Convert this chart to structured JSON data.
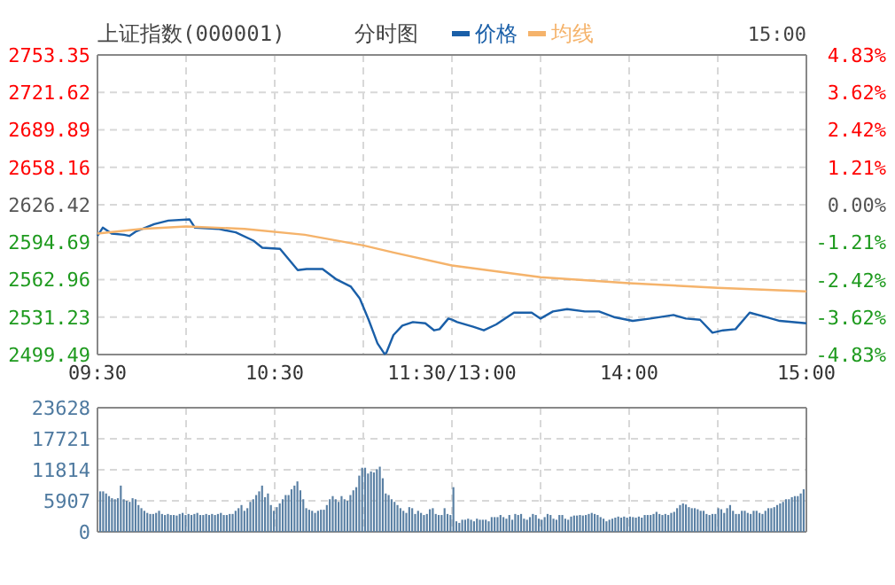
{
  "chart_data": [
    {
      "type": "line",
      "title": "上证指数(000001)",
      "subtitle": "分时图",
      "legend": "top",
      "grid": true,
      "xlim": [
        9.5,
        11.5
      ],
      "xticks": [
        {
          "value": 9.5,
          "label": "09:30"
        },
        {
          "value": 10,
          "label": null
        },
        {
          "value": 10.5,
          "label": "10:30"
        },
        {
          "value": 11,
          "label": null
        },
        {
          "value": 11.5,
          "label": "11:30/13:00"
        }
      ],
      "ylim": [
        2499.49,
        2753.35
      ],
      "yticks": [
        2499.49,
        2531.23,
        2562.96,
        2594.69,
        2626.42,
        2658.16,
        2689.89,
        2721.62,
        2753.35
      ],
      "series": [
        {
          "name": "价格",
          "color": "#1a5fa8",
          "x": [
            9.5,
            9.53,
            9.58,
            9.65,
            9.68,
            9.72,
            9.82,
            9.9,
            10.02,
            10.05,
            10.18,
            10.28,
            10.38,
            10.43,
            10.53,
            10.58,
            10.63,
            10.68,
            10.77,
            10.85,
            10.93,
            10.98,
            11.03,
            11.08,
            11.12,
            11.13,
            11.17,
            11.22,
            11.28,
            11.35,
            11.4,
            11.43,
            11.48,
            11.5
          ],
          "values": [
            2600,
            2607,
            2602,
            2601,
            2600,
            2604,
            2610,
            2613,
            2614,
            2607,
            2606,
            2603,
            2596,
            2590,
            2589,
            2580,
            2571,
            2572,
            2572,
            2563,
            2557,
            2547,
            2529,
            2509,
            2500,
            2501,
            2516,
            2524,
            2527,
            2526,
            2520,
            2521,
            2530,
            2529
          ]
        },
        {
          "name": "均线",
          "color": "#f5b36b",
          "x": [
            9.5,
            9.75,
            10,
            10.33,
            10.67,
            11,
            11.17,
            11.5
          ],
          "values": [
            2602,
            2606,
            2608,
            2606,
            2601,
            2592,
            2586,
            2575
          ]
        }
      ]
    },
    {
      "type": "line",
      "annotations": [
        "15:00"
      ],
      "grid": true,
      "tick_labels": "x",
      "xlim": [
        13,
        15
      ],
      "xticks": [
        {
          "value": 13.5,
          "label": null
        },
        {
          "value": 14,
          "label": "14:00"
        },
        {
          "value": 14.5,
          "label": null
        },
        {
          "value": 15,
          "label": "15:00"
        }
      ],
      "ylim": [
        2499.49,
        2753.35
      ],
      "y2lim": [
        -4.83,
        4.83
      ],
      "y2ticks": [
        {
          "value": -4.83,
          "label": "-4.83%"
        },
        {
          "value": -3.62,
          "label": "-3.62%"
        },
        {
          "value": -2.42,
          "label": "-2.42%"
        },
        {
          "value": -1.21,
          "label": "-1.21%"
        },
        {
          "value": 0,
          "label": "0.00%"
        },
        {
          "value": 1.21,
          "label": "1.21%"
        },
        {
          "value": 2.42,
          "label": "2.42%"
        },
        {
          "value": 3.62,
          "label": "3.62%"
        },
        {
          "value": 4.83,
          "label": "4.83%"
        }
      ],
      "series": [
        {
          "color": "#1a5fa8",
          "x": [
            13,
            13.03,
            13.12,
            13.18,
            13.25,
            13.35,
            13.45,
            13.5,
            13.57,
            13.65,
            13.75,
            13.83,
            13.92,
            14.02,
            14.12,
            14.25,
            14.32,
            14.4,
            14.47,
            14.53,
            14.6,
            14.68,
            14.78,
            14.85,
            15
          ],
          "values": [
            2529,
            2527,
            2523,
            2520,
            2525,
            2535,
            2535,
            2530,
            2536,
            2538,
            2536,
            2536,
            2531,
            2528,
            2530,
            2533,
            2530,
            2529,
            2518,
            2520,
            2521,
            2535,
            2531,
            2528,
            2526
          ]
        },
        {
          "color": "#f5b36b",
          "x": [
            13,
            13.5,
            14,
            14.5,
            15
          ],
          "values": [
            2575,
            2565,
            2560,
            2556,
            2553
          ]
        }
      ]
    },
    {
      "type": "bar",
      "grid": true,
      "tick_labels": "y",
      "color": "#5a80a4",
      "ylim": [
        0,
        23628
      ],
      "yticks": [
        0,
        5907,
        11814,
        17721,
        23628
      ],
      "categories": [
        null,
        null,
        null,
        null,
        null,
        null,
        null,
        null,
        null,
        null,
        null,
        null,
        null,
        null,
        null,
        null,
        null,
        null,
        null,
        null,
        null,
        null,
        null,
        null,
        null,
        null,
        null,
        null,
        null,
        null,
        null,
        null,
        null,
        null,
        null,
        null,
        null,
        null,
        null,
        null,
        null,
        null,
        null,
        null,
        null,
        null,
        null,
        null,
        null,
        null,
        null,
        null,
        null,
        null,
        null,
        null,
        null,
        null,
        null,
        null,
        null,
        null,
        null,
        null,
        null,
        null,
        null,
        null,
        null,
        null,
        null,
        null,
        null,
        null,
        null,
        null,
        null,
        null,
        null,
        null,
        null,
        null,
        null,
        null,
        null,
        null,
        null,
        null,
        null,
        null,
        null,
        null,
        null,
        null,
        null,
        null,
        null,
        null,
        null,
        null,
        null,
        null,
        null,
        null,
        null,
        null,
        null,
        null,
        null,
        null,
        null,
        null,
        null,
        null,
        null,
        null,
        null,
        null,
        null,
        null,
        null,
        null,
        null,
        null,
        null,
        null,
        null,
        null,
        null,
        null,
        null,
        null,
        null,
        null,
        null,
        null,
        null,
        null,
        null,
        null,
        null,
        null,
        null,
        null,
        null,
        null,
        null,
        null,
        null,
        null,
        null,
        null,
        null,
        null,
        null,
        null,
        null,
        null,
        null,
        null,
        null,
        null,
        null,
        null,
        null,
        null,
        null,
        null,
        null,
        null,
        null,
        null,
        null,
        null,
        null,
        null,
        null,
        null,
        null,
        null,
        null,
        null,
        null,
        null,
        null,
        null,
        null,
        null,
        null,
        null,
        null,
        null,
        null,
        null,
        null,
        null,
        null,
        null,
        null,
        null,
        null,
        null,
        null,
        null,
        null,
        null,
        null,
        null,
        null,
        null,
        null,
        null,
        null,
        null,
        null,
        null,
        null,
        null,
        null,
        null,
        null,
        null,
        null,
        null,
        null,
        null,
        null,
        null,
        null,
        null,
        null,
        null,
        null,
        null,
        null,
        null,
        null,
        null,
        null,
        null
      ],
      "values": [
        7700,
        7700,
        7300,
        6800,
        6400,
        6200,
        6400,
        8800,
        6200,
        5900,
        5700,
        6400,
        6200,
        5100,
        4500,
        4000,
        3600,
        3400,
        3400,
        3600,
        4000,
        3400,
        3200,
        3400,
        3200,
        3200,
        3100,
        3400,
        3600,
        3200,
        3400,
        3200,
        3400,
        3600,
        3200,
        3200,
        3400,
        3200,
        3400,
        3200,
        3400,
        3600,
        3200,
        3200,
        3400,
        3400,
        4000,
        4500,
        5100,
        4000,
        4500,
        5700,
        6200,
        7000,
        7700,
        8800,
        6600,
        7300,
        5100,
        4000,
        4700,
        5400,
        6200,
        7000,
        7000,
        8100,
        8800,
        9600,
        7900,
        6200,
        4500,
        4200,
        4000,
        3600,
        4000,
        4200,
        4200,
        5100,
        6200,
        6800,
        6200,
        5700,
        6800,
        6200,
        5900,
        7000,
        7900,
        8500,
        10700,
        12200,
        12200,
        11100,
        11500,
        11300,
        11900,
        12400,
        10200,
        7300,
        7000,
        6200,
        5700,
        5100,
        4500,
        4000,
        3600,
        4700,
        4500,
        3400,
        4000,
        3600,
        3200,
        3400,
        4300,
        4500,
        3400,
        3200,
        3200,
        4500,
        3400,
        3200,
        8500,
        2000,
        1700,
        2300,
        2300,
        2500,
        2300,
        2000,
        2500,
        2300,
        2300,
        2300,
        2000,
        2800,
        2800,
        2800,
        3200,
        2800,
        2500,
        3200,
        2300,
        3400,
        3200,
        3400,
        2500,
        2300,
        2800,
        3400,
        3200,
        2500,
        2300,
        2800,
        3400,
        3200,
        2500,
        2300,
        3200,
        3200,
        2500,
        2300,
        2900,
        3100,
        3100,
        3200,
        3100,
        3200,
        3400,
        3600,
        3400,
        3200,
        2800,
        2500,
        2000,
        2300,
        2500,
        2700,
        2900,
        2700,
        2900,
        2700,
        2900,
        2800,
        2700,
        2900,
        2700,
        3200,
        3200,
        3200,
        3400,
        3800,
        3400,
        3200,
        3400,
        3200,
        3600,
        3800,
        4500,
        5100,
        5400,
        5200,
        4700,
        4500,
        4500,
        4300,
        4000,
        4000,
        3400,
        3200,
        3400,
        3400,
        4500,
        4300,
        3600,
        4500,
        5100,
        4000,
        3400,
        3400,
        4000,
        4000,
        3600,
        3400,
        4000,
        4000,
        3600,
        3400,
        4000,
        4500,
        4500,
        4700,
        5100,
        5400,
        5700,
        6200,
        6200,
        6600,
        6800,
        6800,
        7300,
        8100
      ]
    }
  ]
}
